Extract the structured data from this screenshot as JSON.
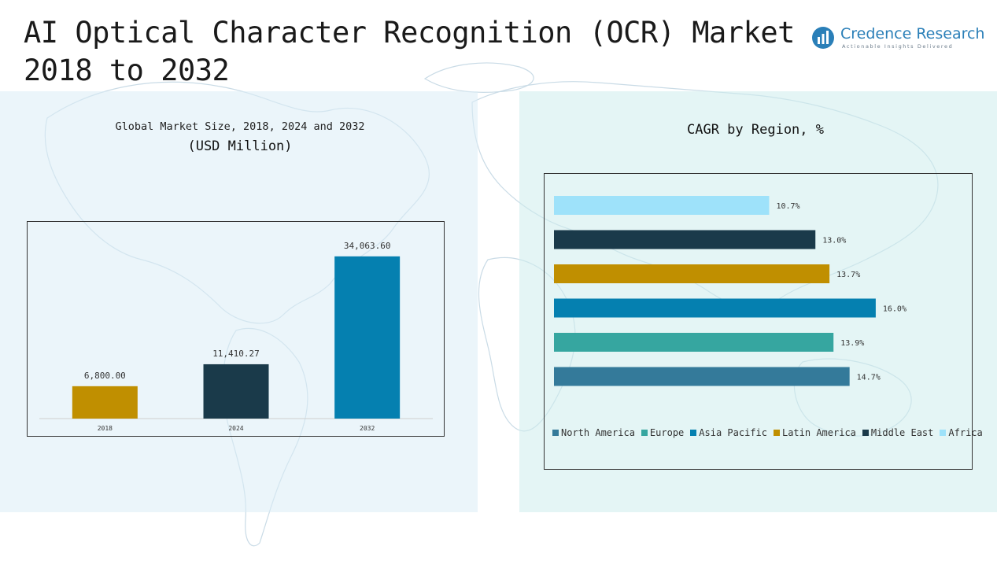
{
  "title": "AI Optical Character Recognition (OCR) Market",
  "subtitle": "2018 to 2032",
  "logo": {
    "name": "Credence Research",
    "tagline": "Actionable Insights Delivered"
  },
  "left_panel": {
    "title_line1": "Global Market Size, 2018, 2024 and 2032",
    "title_line2": "(USD Million)"
  },
  "right_panel": {
    "title": "CAGR by Region, %"
  },
  "chart_data": [
    {
      "type": "bar",
      "orientation": "vertical",
      "title": "Global Market Size, 2018, 2024 and 2032",
      "ylabel": "(USD Million)",
      "categories": [
        "2018",
        "2024",
        "2032"
      ],
      "values": [
        6800.0,
        11410.27,
        34063.6
      ],
      "value_labels": [
        "6,800.00",
        "11,410.27",
        "34,063.60"
      ],
      "colors": [
        "#c08f00",
        "#1a3a4a",
        "#0580b0"
      ],
      "ylim": [
        0,
        38000
      ],
      "grid": false
    },
    {
      "type": "bar",
      "orientation": "horizontal",
      "title": "CAGR by Region, %",
      "categories": [
        "North America",
        "Europe",
        "Asia Pacific",
        "Latin America",
        "Middle East",
        "Africa"
      ],
      "values": [
        14.7,
        13.9,
        16.0,
        13.7,
        13.0,
        10.7
      ],
      "value_labels": [
        "14.7%",
        "13.9%",
        "16.0%",
        "13.7%",
        "13.0%",
        "10.7%"
      ],
      "colors": [
        "#347a9a",
        "#36a6a0",
        "#0580b0",
        "#c08f00",
        "#1a3a4a",
        "#9ee2fa"
      ],
      "xlim": [
        0,
        18
      ],
      "legend": "bottom",
      "grid": false
    }
  ]
}
